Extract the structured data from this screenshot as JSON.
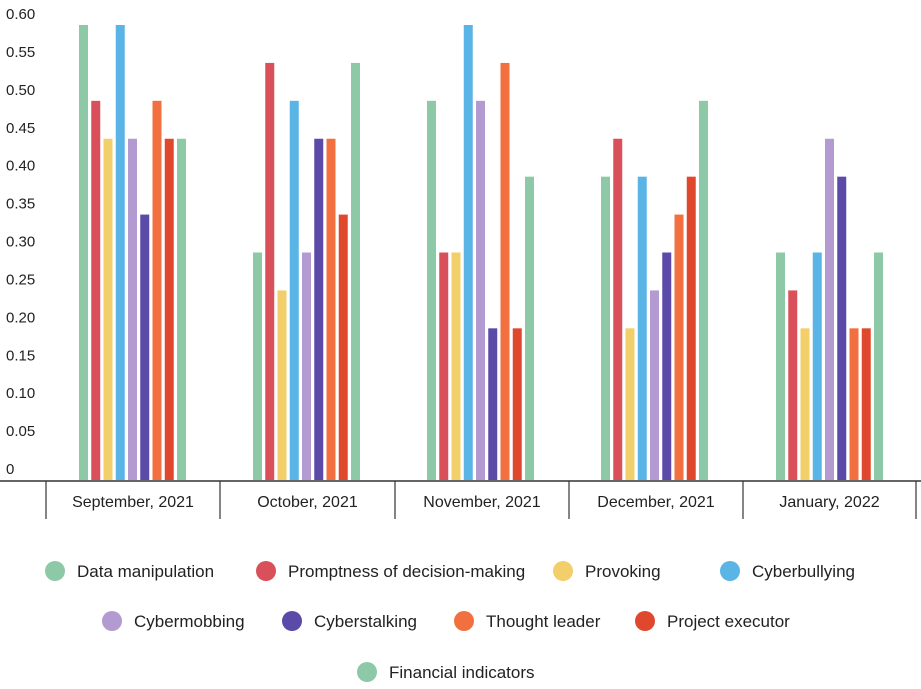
{
  "chart_data": {
    "type": "bar",
    "title": "",
    "xlabel": "",
    "ylabel": "",
    "ylim": [
      0,
      0.6
    ],
    "yticks": [
      "0",
      "0.05",
      "0.10",
      "0.15",
      "0.20",
      "0.25",
      "0.30",
      "0.35",
      "0.40",
      "0.45",
      "0.50",
      "0.55",
      "0.60"
    ],
    "categories": [
      "September, 2021",
      "October, 2021",
      "November, 2021",
      "December, 2021",
      "January, 2022"
    ],
    "series": [
      {
        "name": "Data manipulation",
        "color": "#8ec9a7",
        "values": [
          0.6,
          0.3,
          0.5,
          0.4,
          0.3
        ]
      },
      {
        "name": "Promptness of decision-making",
        "color": "#d9505a",
        "values": [
          0.5,
          0.55,
          0.3,
          0.45,
          0.25
        ]
      },
      {
        "name": "Provoking",
        "color": "#f2cf6b",
        "values": [
          0.45,
          0.25,
          0.3,
          0.2,
          0.2
        ]
      },
      {
        "name": "Cyberbullying",
        "color": "#5ab4e6",
        "values": [
          0.6,
          0.5,
          0.6,
          0.4,
          0.3
        ]
      },
      {
        "name": "Cybermobbing",
        "color": "#b39ad0",
        "values": [
          0.45,
          0.3,
          0.5,
          0.25,
          0.45
        ]
      },
      {
        "name": "Cyberstalking",
        "color": "#5b4aa8",
        "values": [
          0.35,
          0.45,
          0.2,
          0.3,
          0.4
        ]
      },
      {
        "name": "Thought leader",
        "color": "#f2703f",
        "values": [
          0.5,
          0.45,
          0.55,
          0.35,
          0.2
        ]
      },
      {
        "name": "Project executor",
        "color": "#e0482e",
        "values": [
          0.45,
          0.35,
          0.2,
          0.4,
          0.2
        ]
      },
      {
        "name": "Financial indicators",
        "color": "#8ec9a7",
        "values": [
          0.45,
          0.55,
          0.4,
          0.5,
          0.3
        ]
      }
    ],
    "grid": false,
    "legend_position": "bottom"
  }
}
